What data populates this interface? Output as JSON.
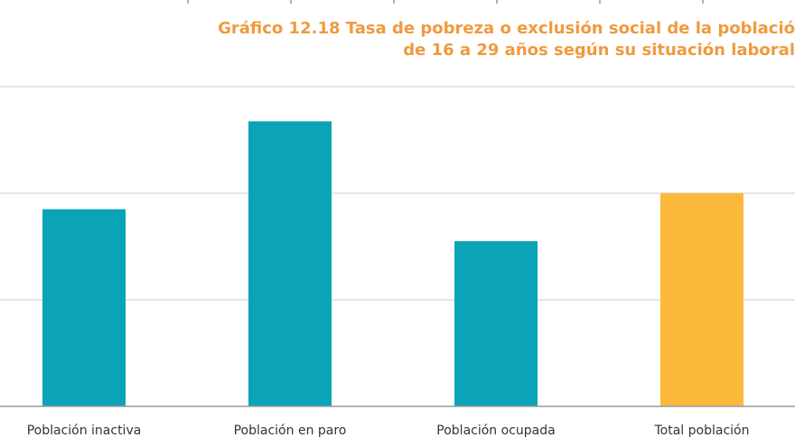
{
  "chart_data": {
    "type": "bar",
    "title_line1": "Gráfico 12.18 Tasa de pobreza o exclusión social de la població",
    "title_line2": "de 16 a 29 años según su situación laboral",
    "categories": [
      "Población inactiva",
      "Población en paro",
      "Población ocupada",
      "Total población"
    ],
    "values": [
      37,
      53.5,
      31,
      40
    ],
    "colors": [
      "#0aa3b8",
      "#0aa3b8",
      "#0aa3b8",
      "#fbb93b"
    ],
    "ylim": [
      0,
      60
    ],
    "gridlines": [
      20,
      40,
      60
    ],
    "grid": true,
    "legend": "none"
  }
}
